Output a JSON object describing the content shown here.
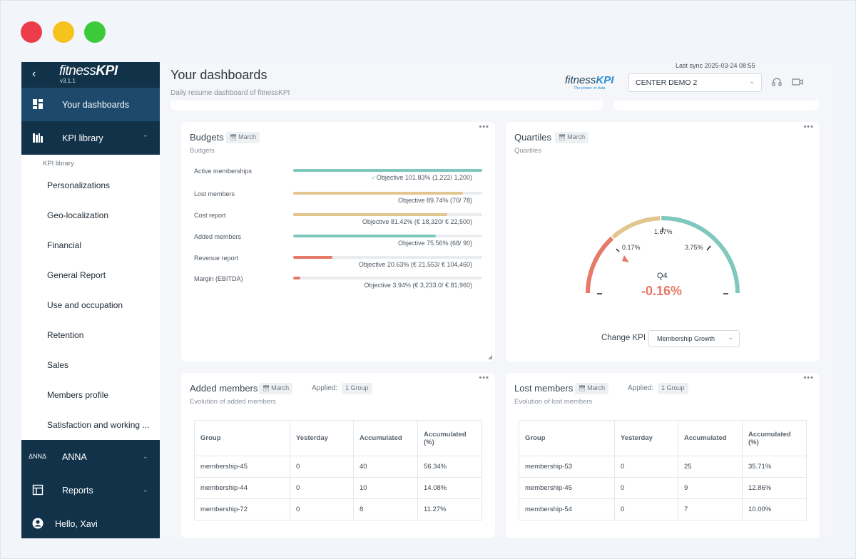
{
  "window_controls": [
    "close",
    "minimize",
    "maximize"
  ],
  "sidebar": {
    "back_icon": "chevron-left-icon",
    "brand_name": "fitness",
    "brand_kpi": "KPI",
    "version": "v3.1.1",
    "dashboards_label": "Your dashboards",
    "kpi_library_label": "KPI library",
    "kpi_library_sub_title": "KPI library",
    "kpi_items": [
      "Personalizations",
      "Geo-localization",
      "Financial",
      "General Report",
      "Use and occupation",
      "Retention",
      "Sales",
      "Members profile",
      "Satisfaction and working ..."
    ],
    "anna_label": "ANNA",
    "anna_logo": "ΔNΝΔ",
    "reports_label": "Reports",
    "user_greeting": "Hello, Xavi"
  },
  "header": {
    "title": "Your dashboards",
    "subtitle": "Daily resume dashboard of fitnessKPI",
    "logo_name": "fitness",
    "logo_kpi": "KPI",
    "logo_tagline": "The power of data",
    "last_sync": "Last sync  2025-03-24  08:55",
    "center_selected": "CENTER DEMO 2"
  },
  "colors": {
    "sidebar_bg": "#12324a",
    "sidebar_active": "#1d4a6c",
    "teal": "#7fc8bd",
    "sand": "#e2c58f",
    "red": "#e57a68"
  },
  "budgets": {
    "title": "Budgets",
    "badge": "March",
    "subtitle": "Budgets",
    "rows": [
      {
        "label": "Active memberships",
        "objective": "Objective 101.83% (1,222/ 1,200)",
        "pct": 100,
        "color": "#7fc8bd",
        "check": true
      },
      {
        "label": "Lost members",
        "objective": "Objective 89.74% (70/ 78)",
        "pct": 89.74,
        "color": "#e2c58f",
        "check": false
      },
      {
        "label": "Cost report",
        "objective": "Objective 81.42% (€ 18,320/ € 22,500)",
        "pct": 81.42,
        "color": "#e2c58f",
        "check": false
      },
      {
        "label": "Added members",
        "objective": "Objective 75.56% (68/ 90)",
        "pct": 75.56,
        "color": "#7fc8bd",
        "check": false
      },
      {
        "label": "Revenue report",
        "objective": "Objective 20.63% (€ 21,553/ € 104,460)",
        "pct": 20.63,
        "color": "#e57a68",
        "check": false
      },
      {
        "label": "Margin (EBITDA)",
        "objective": "Objective 3.94% (€ 3,233.0/ € 81,960)",
        "pct": 3.94,
        "color": "#e57a68",
        "check": false
      }
    ]
  },
  "quartiles": {
    "title": "Quartiles",
    "badge": "March",
    "subtitle": "Quartiles",
    "tick_q1": "0.17%",
    "tick_q2": "1.67%",
    "tick_q3": "3.75%",
    "quarter": "Q4",
    "value": "-0.16%",
    "change_kpi_label": "Change KPI",
    "kpi_selected": "Membership Growth"
  },
  "added_members": {
    "title": "Added members",
    "badge": "March",
    "applied_label": "Applied:",
    "applied_value": "1 Group",
    "subtitle": "Evolution of added members",
    "columns": [
      "Group",
      "Yesterday",
      "Accumulated",
      "Accumulated",
      "(%)"
    ],
    "rows": [
      [
        "membership-45",
        "0",
        "40",
        "56.34%"
      ],
      [
        "membership-44",
        "0",
        "10",
        "14.08%"
      ],
      [
        "membership-72",
        "0",
        "8",
        "11.27%"
      ]
    ]
  },
  "lost_members": {
    "title": "Lost members",
    "badge": "March",
    "applied_label": "Applied:",
    "applied_value": "1 Group",
    "subtitle": "Evolution of lost members",
    "columns": [
      "Group",
      "Yesterday",
      "Accumulated",
      "Accumulated",
      "(%)"
    ],
    "rows": [
      [
        "membership-53",
        "0",
        "25",
        "35.71%"
      ],
      [
        "membership-45",
        "0",
        "9",
        "12.86%"
      ],
      [
        "membership-54",
        "0",
        "7",
        "10.00%"
      ]
    ]
  }
}
